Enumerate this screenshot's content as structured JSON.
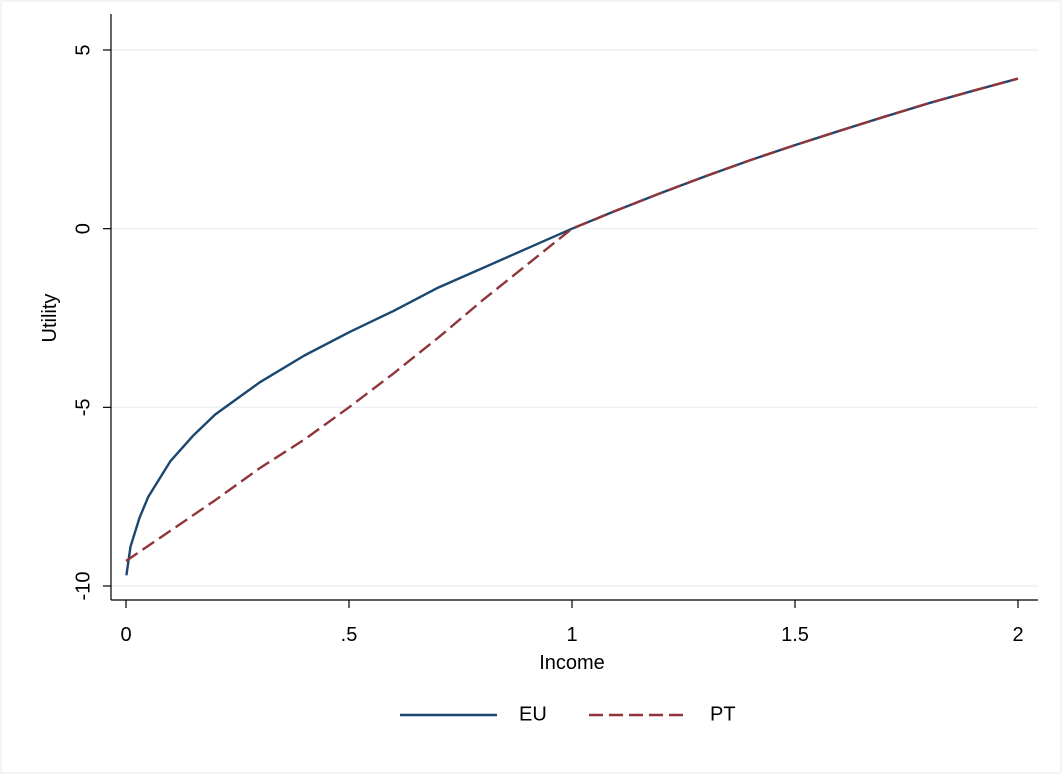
{
  "chart_data": {
    "type": "line",
    "xlabel": "Income",
    "ylabel": "Utility",
    "xlim": [
      0,
      2
    ],
    "ylim": [
      -10,
      5
    ],
    "x_ticks": [
      {
        "value": 0,
        "label": "0"
      },
      {
        "value": 0.5,
        "label": ".5"
      },
      {
        "value": 1,
        "label": "1"
      },
      {
        "value": 1.5,
        "label": "1.5"
      },
      {
        "value": 2,
        "label": "2"
      }
    ],
    "y_ticks": [
      {
        "value": -10,
        "label": "-10"
      },
      {
        "value": -5,
        "label": "-5"
      },
      {
        "value": 0,
        "label": "0"
      },
      {
        "value": 5,
        "label": "5"
      }
    ],
    "grid": true,
    "legend_position": "bottom",
    "series": [
      {
        "name": "EU",
        "color": "#1a476f",
        "style": "solid",
        "x": [
          0.001,
          0.01,
          0.03,
          0.05,
          0.1,
          0.15,
          0.2,
          0.3,
          0.4,
          0.5,
          0.6,
          0.7,
          0.8,
          0.9,
          1.0,
          1.1,
          1.2,
          1.3,
          1.4,
          1.5,
          1.6,
          1.7,
          1.8,
          1.9,
          2.0
        ],
        "y": [
          -9.7,
          -8.9,
          -8.1,
          -7.5,
          -6.5,
          -5.8,
          -5.2,
          -4.3,
          -3.55,
          -2.9,
          -2.3,
          -1.65,
          -1.1,
          -0.55,
          0.0,
          0.51,
          1.0,
          1.47,
          1.92,
          2.34,
          2.74,
          3.13,
          3.51,
          3.86,
          4.2
        ]
      },
      {
        "name": "PT",
        "color": "#90353b",
        "style": "dashed",
        "x": [
          0.0,
          0.1,
          0.2,
          0.3,
          0.4,
          0.5,
          0.6,
          0.7,
          0.8,
          0.9,
          1.0,
          1.1,
          1.2,
          1.3,
          1.4,
          1.5,
          1.6,
          1.7,
          1.8,
          1.9,
          2.0
        ],
        "y": [
          -9.3,
          -8.45,
          -7.6,
          -6.7,
          -5.9,
          -5.0,
          -4.05,
          -3.05,
          -2.0,
          -1.0,
          0.0,
          0.51,
          1.0,
          1.47,
          1.92,
          2.34,
          2.74,
          3.13,
          3.51,
          3.86,
          4.2
        ]
      }
    ]
  }
}
